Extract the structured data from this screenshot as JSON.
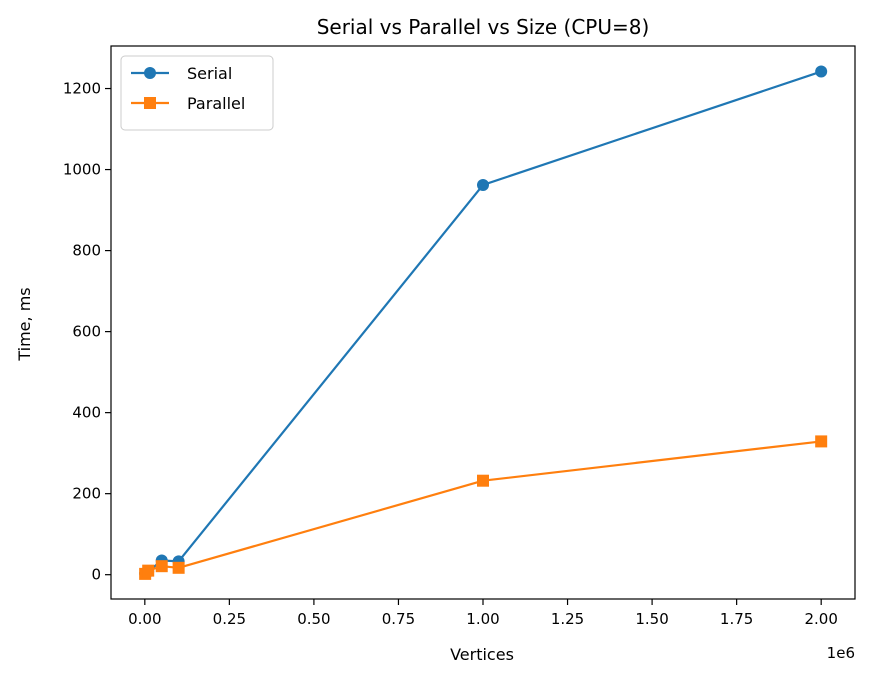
{
  "chart_data": {
    "type": "line",
    "title": "Serial vs Parallel vs Size (CPU=8)",
    "xlabel": "Vertices",
    "ylabel": "Time, ms",
    "x_offset_label": "1e6",
    "xlim": [
      -0.1,
      2.1
    ],
    "ylim": [
      -60,
      1305
    ],
    "x_ticks": [
      0.0,
      0.25,
      0.5,
      0.75,
      1.0,
      1.25,
      1.5,
      1.75,
      2.0
    ],
    "x_tick_labels": [
      "0.00",
      "0.25",
      "0.50",
      "0.75",
      "1.00",
      "1.25",
      "1.50",
      "1.75",
      "2.00"
    ],
    "y_ticks": [
      0,
      200,
      400,
      600,
      800,
      1000,
      1200
    ],
    "y_tick_labels": [
      "0",
      "200",
      "400",
      "600",
      "800",
      "1000",
      "1200"
    ],
    "x": [
      0.001,
      0.01,
      0.05,
      0.1,
      1.0,
      2.0
    ],
    "series": [
      {
        "name": "Serial",
        "color": "#1f77b4",
        "marker": "circle",
        "values": [
          3,
          8,
          35,
          33,
          962,
          1242
        ]
      },
      {
        "name": "Parallel",
        "color": "#ff7f0e",
        "marker": "square",
        "values": [
          2,
          10,
          21,
          17,
          232,
          329
        ]
      }
    ],
    "legend": {
      "placement": "top-left"
    },
    "grid": false
  }
}
